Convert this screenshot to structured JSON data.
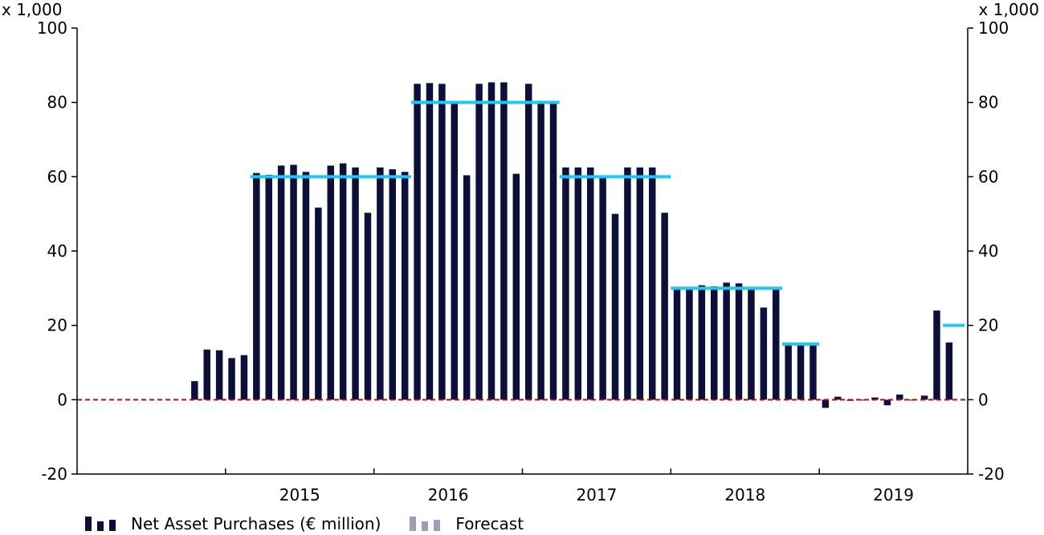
{
  "chart_data": {
    "type": "bar",
    "unit_label_left": "x 1,000",
    "unit_label_right": "x 1,000",
    "ylim": [
      -20,
      100
    ],
    "yticks": [
      -20,
      0,
      20,
      40,
      60,
      80,
      100
    ],
    "x_tick_labels": [
      "2015",
      "2016",
      "2017",
      "2018",
      "2019"
    ],
    "colors": {
      "bars": "#0b0f3a",
      "target": "#1ec8f0",
      "zero_line": "#b01010",
      "forecast": "#9aa0b2"
    },
    "series": [
      {
        "name": "Net Asset Purchases (€ million)",
        "start": "2014-10",
        "values": [
          5,
          13.5,
          13.3,
          11.2,
          12,
          61,
          60.5,
          63,
          63.2,
          61.3,
          51.7,
          63,
          63.6,
          62.5,
          50.3,
          62.5,
          62,
          61.3,
          85,
          85.2,
          85,
          80,
          60.4,
          85,
          85.4,
          85.4,
          60.8,
          85,
          80.4,
          80.4,
          62.5,
          62.5,
          62.5,
          60,
          50,
          62.5,
          62.5,
          62.5,
          50.3,
          30.3,
          29.8,
          30.8,
          30.5,
          31.5,
          31.3,
          29.6,
          24.8,
          29.8,
          15.3,
          15.3,
          15.3,
          -2.2,
          0.8,
          -0.3,
          0,
          0.6,
          -1.5,
          1.4,
          0,
          1.1,
          24,
          15.4
        ]
      },
      {
        "name": "Forecast",
        "values": []
      }
    ],
    "target_levels": [
      {
        "from": "2015-03",
        "to": "2016-03",
        "value": 60
      },
      {
        "from": "2016-04",
        "to": "2017-03",
        "value": 80
      },
      {
        "from": "2017-04",
        "to": "2017-12",
        "value": 60
      },
      {
        "from": "2018-01",
        "to": "2018-09",
        "value": 30
      },
      {
        "from": "2018-10",
        "to": "2018-12",
        "value": 15
      },
      {
        "from": "2019-11",
        "to": "2019-12",
        "value": 20
      }
    ],
    "legend": [
      {
        "label": "Net Asset Purchases (€ million)",
        "color": "#0b0f3a"
      },
      {
        "label": "Forecast",
        "color": "#9aa0b2"
      }
    ],
    "legend_position": "bottom-left"
  }
}
